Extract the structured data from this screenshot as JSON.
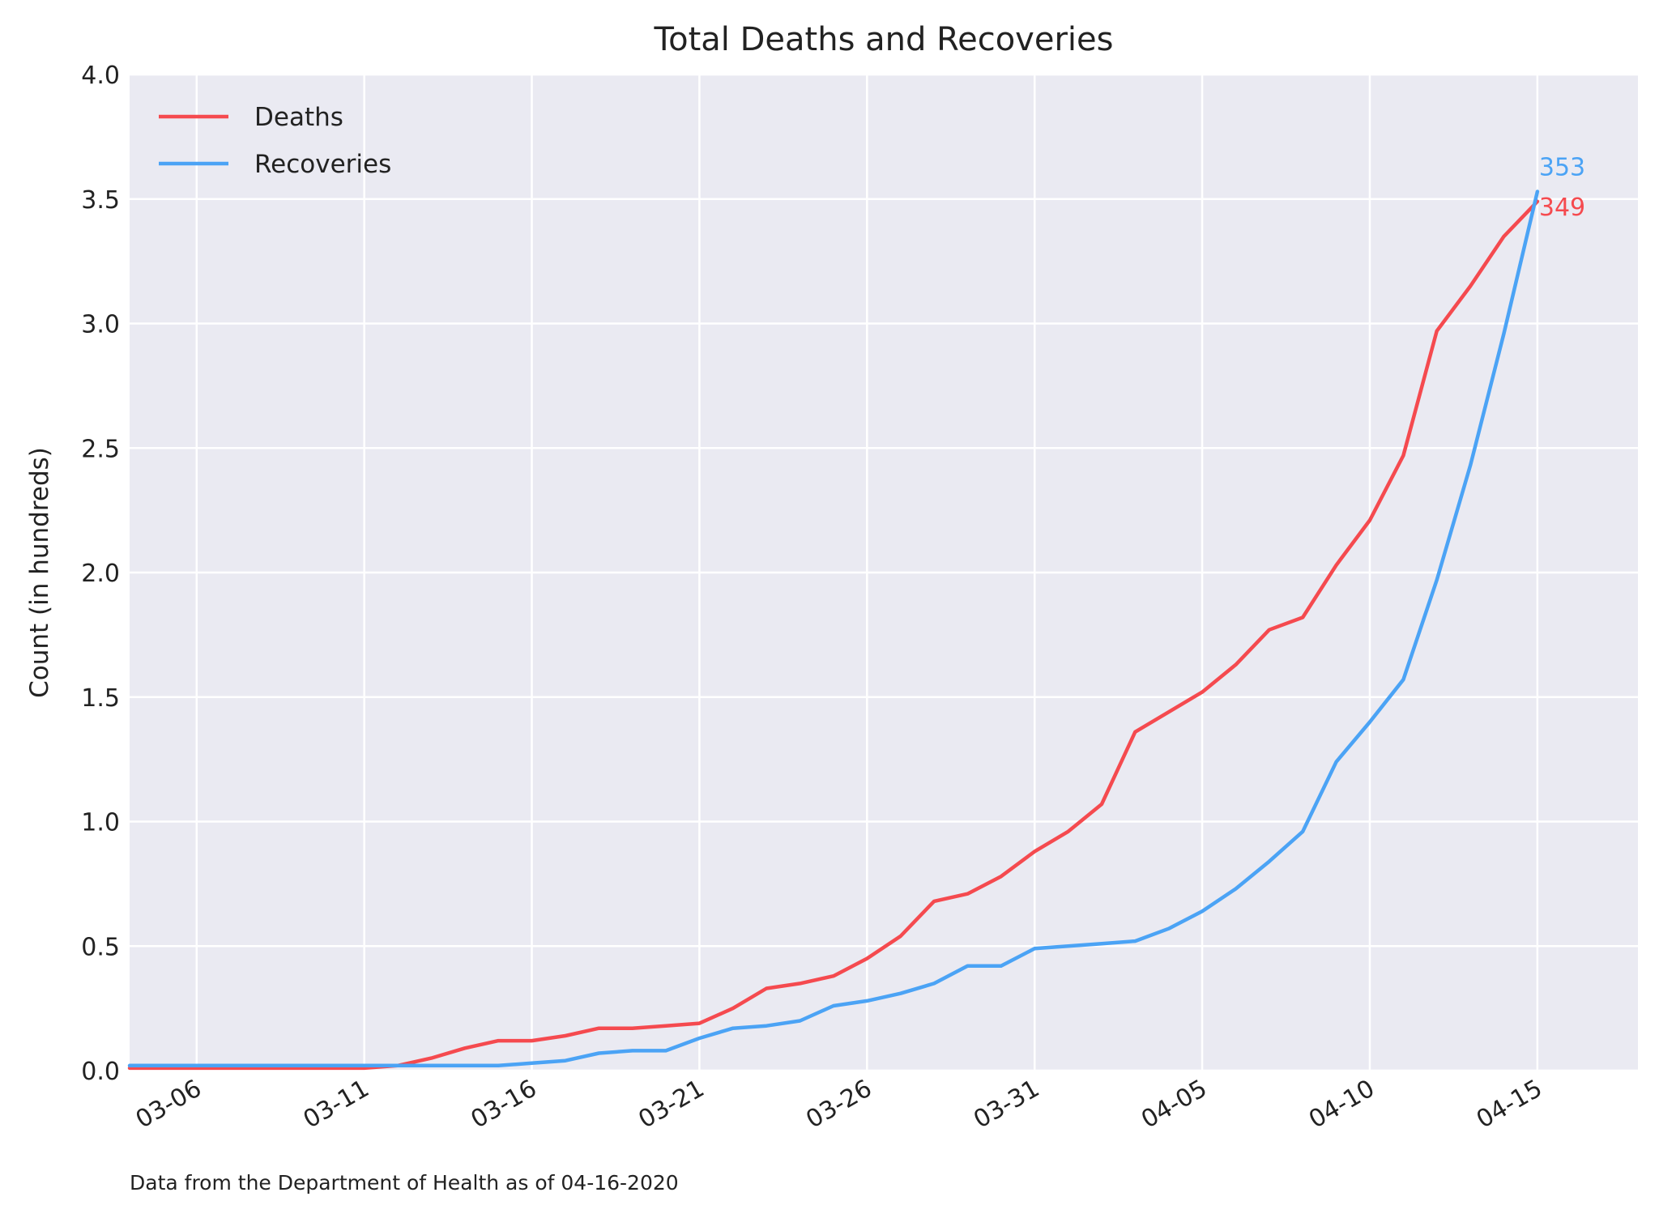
{
  "chart_data": {
    "type": "line",
    "title": "Total Deaths and Recoveries",
    "xlabel": "",
    "ylabel": "Count (in hundreds)",
    "source_note": "Data from the Department of Health as of 04-16-2020",
    "x": [
      "03-04",
      "03-05",
      "03-06",
      "03-07",
      "03-08",
      "03-09",
      "03-10",
      "03-11",
      "03-12",
      "03-13",
      "03-14",
      "03-15",
      "03-16",
      "03-17",
      "03-18",
      "03-19",
      "03-20",
      "03-21",
      "03-22",
      "03-23",
      "03-24",
      "03-25",
      "03-26",
      "03-27",
      "03-28",
      "03-29",
      "03-30",
      "03-31",
      "04-01",
      "04-02",
      "04-03",
      "04-04",
      "04-05",
      "04-06",
      "04-07",
      "04-08",
      "04-09",
      "04-10",
      "04-11",
      "04-12",
      "04-13",
      "04-14",
      "04-15"
    ],
    "x_ticks": [
      "03-06",
      "03-11",
      "03-16",
      "03-21",
      "03-26",
      "03-31",
      "04-05",
      "04-10",
      "04-15"
    ],
    "xlim": [
      "03-04",
      "04-18"
    ],
    "ylim": [
      0,
      4.0
    ],
    "y_ticks": [
      "0.0",
      "0.5",
      "1.0",
      "1.5",
      "2.0",
      "2.5",
      "3.0",
      "3.5",
      "4.0"
    ],
    "grid": true,
    "legend_position": "top-left",
    "series": [
      {
        "name": "Deaths",
        "color": "#f54a4f",
        "end_label": "349",
        "values": [
          0.01,
          0.01,
          0.01,
          0.01,
          0.01,
          0.01,
          0.01,
          0.01,
          0.02,
          0.05,
          0.09,
          0.12,
          0.12,
          0.14,
          0.17,
          0.17,
          0.18,
          0.19,
          0.25,
          0.33,
          0.35,
          0.38,
          0.45,
          0.54,
          0.68,
          0.71,
          0.78,
          0.88,
          0.96,
          1.07,
          1.36,
          1.44,
          1.52,
          1.63,
          1.77,
          1.82,
          2.03,
          2.21,
          2.47,
          2.97,
          3.15,
          3.35,
          3.49
        ]
      },
      {
        "name": "Recoveries",
        "color": "#4ba3f5",
        "end_label": "353",
        "values": [
          0.02,
          0.02,
          0.02,
          0.02,
          0.02,
          0.02,
          0.02,
          0.02,
          0.02,
          0.02,
          0.02,
          0.02,
          0.03,
          0.04,
          0.07,
          0.08,
          0.08,
          0.13,
          0.17,
          0.18,
          0.2,
          0.26,
          0.28,
          0.31,
          0.35,
          0.42,
          0.42,
          0.49,
          0.5,
          0.51,
          0.52,
          0.57,
          0.64,
          0.73,
          0.84,
          0.96,
          1.24,
          1.4,
          1.57,
          1.97,
          2.43,
          2.96,
          3.53
        ]
      }
    ]
  }
}
